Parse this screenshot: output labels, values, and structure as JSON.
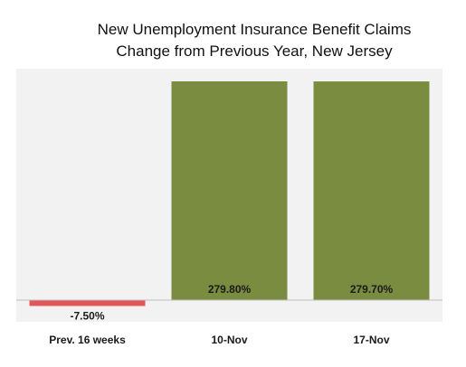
{
  "chart_data": {
    "type": "bar",
    "title": "New Unemployment Insurance Benefit Claims",
    "subtitle": "Change from Previous Year, New Jersey",
    "categories": [
      "Prev. 16 weeks",
      "10-Nov",
      "17-Nov"
    ],
    "values": [
      -7.5,
      279.8,
      279.7
    ],
    "value_labels": [
      "-7.50%",
      "279.80%",
      "279.70%"
    ],
    "colors": [
      "#e2585a",
      "#7a8c40",
      "#7a8c40"
    ],
    "plot_background": "#f2f2f2",
    "ylim": [
      -20,
      300
    ],
    "grid": false,
    "legend": "none"
  }
}
